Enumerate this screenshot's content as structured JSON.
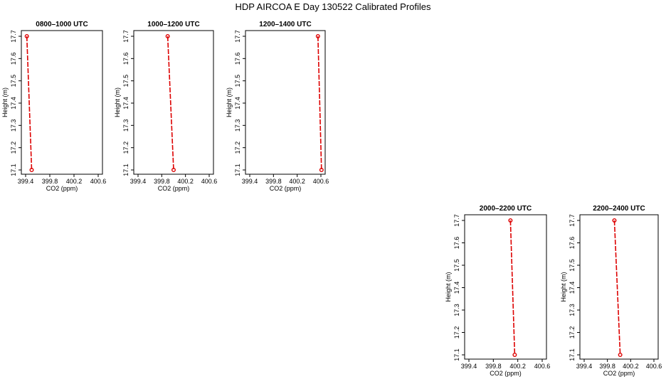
{
  "title": "HDP AIRCOA E  Day 130522  Calibrated Profiles",
  "chart_data": [
    {
      "type": "line",
      "title": "0800–1000 UTC",
      "xlabel": "CO2 (ppm)",
      "ylabel": "Height (m)",
      "xlim": [
        399.4,
        400.6
      ],
      "ylim": [
        17.1,
        17.7
      ],
      "xticks": [
        "399.4",
        "399.8",
        "400.2",
        "400.6"
      ],
      "yticks": [
        "17.1",
        "17.2",
        "17.3",
        "17.4",
        "17.5",
        "17.6",
        "17.7"
      ],
      "series": [
        {
          "x": [
            399.42,
            399.5
          ],
          "y": [
            17.7,
            17.1
          ]
        }
      ],
      "color": "#dd0000"
    },
    {
      "type": "line",
      "title": "1000–1200 UTC",
      "xlabel": "CO2 (ppm)",
      "ylabel": "Height (m)",
      "xlim": [
        399.4,
        400.6
      ],
      "ylim": [
        17.1,
        17.7
      ],
      "xticks": [
        "399.4",
        "399.8",
        "400.2",
        "400.6"
      ],
      "yticks": [
        "17.1",
        "17.2",
        "17.3",
        "17.4",
        "17.5",
        "17.6",
        "17.7"
      ],
      "series": [
        {
          "x": [
            399.9,
            400.0
          ],
          "y": [
            17.7,
            17.1
          ]
        }
      ],
      "color": "#dd0000"
    },
    {
      "type": "line",
      "title": "1200–1400 UTC",
      "xlabel": "CO2 (ppm)",
      "ylabel": "Height (m)",
      "xlim": [
        399.4,
        400.6
      ],
      "ylim": [
        17.1,
        17.7
      ],
      "xticks": [
        "399.4",
        "399.8",
        "400.2",
        "400.6"
      ],
      "yticks": [
        "17.1",
        "17.2",
        "17.3",
        "17.4",
        "17.5",
        "17.6",
        "17.7"
      ],
      "series": [
        {
          "x": [
            400.55,
            400.61
          ],
          "y": [
            17.7,
            17.1
          ]
        }
      ],
      "color": "#dd0000"
    },
    {
      "type": "line",
      "title": "2000–2200 UTC",
      "xlabel": "CO2 (ppm)",
      "ylabel": "Height (m)",
      "xlim": [
        399.4,
        400.6
      ],
      "ylim": [
        17.1,
        17.7
      ],
      "xticks": [
        "399.4",
        "399.8",
        "400.2",
        "400.6"
      ],
      "yticks": [
        "17.1",
        "17.2",
        "17.3",
        "17.4",
        "17.5",
        "17.6",
        "17.7"
      ],
      "series": [
        {
          "x": [
            400.08,
            400.15
          ],
          "y": [
            17.7,
            17.1
          ]
        }
      ],
      "color": "#dd0000"
    },
    {
      "type": "line",
      "title": "2200–2400 UTC",
      "xlabel": "CO2 (ppm)",
      "ylabel": "Height (m)",
      "xlim": [
        399.4,
        400.6
      ],
      "ylim": [
        17.1,
        17.7
      ],
      "xticks": [
        "399.4",
        "399.8",
        "400.2",
        "400.6"
      ],
      "yticks": [
        "17.1",
        "17.2",
        "17.3",
        "17.4",
        "17.5",
        "17.6",
        "17.7"
      ],
      "series": [
        {
          "x": [
            399.92,
            400.02
          ],
          "y": [
            17.7,
            17.1
          ]
        }
      ],
      "color": "#dd0000"
    }
  ]
}
